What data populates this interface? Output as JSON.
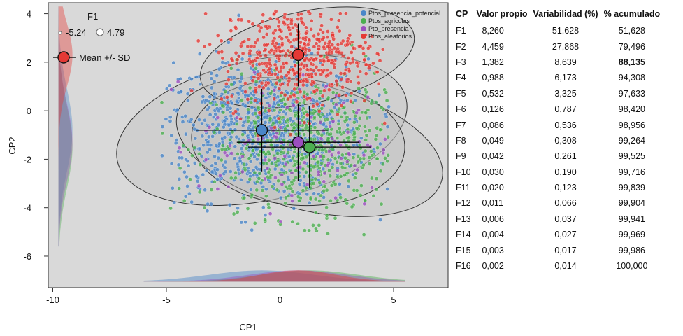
{
  "chart_data": [
    {
      "type": "scatter",
      "xlabel": "CP1",
      "ylabel": "CP2",
      "xlim": [
        -10.2,
        7.4
      ],
      "ylim": [
        -7.3,
        4.45
      ],
      "x_ticks": [
        -10,
        -5,
        0,
        5
      ],
      "y_ticks": [
        4,
        2,
        0,
        -2,
        -4,
        -6
      ],
      "grid": false,
      "legend": {
        "placement": "top-right",
        "entries": [
          {
            "name": "Ptos_presencia_potencial",
            "color": "#4a86c8"
          },
          {
            "name": "Ptos_agricolas",
            "color": "#4caf50"
          },
          {
            "name": "Pto_presencia",
            "color": "#9c4fbf"
          },
          {
            "name": "Ptos_aleatorios",
            "color": "#e53935"
          }
        ]
      },
      "inset": {
        "title": "F1",
        "min_label": "-5.24",
        "max_label": "4.79",
        "mean_label": "Mean +/- SD"
      },
      "series": [
        {
          "name": "Ptos_presencia_potencial",
          "color": "#4a86c8",
          "mean": [
            -0.8,
            -0.8
          ],
          "sd": [
            2.9,
            1.7
          ],
          "ellipse": {
            "center": [
              -0.8,
              -0.8
            ],
            "rx": 6.5,
            "ry": 2.9,
            "angle_deg": 12
          }
        },
        {
          "name": "Ptos_agricolas",
          "color": "#4caf50",
          "mean": [
            1.3,
            -1.5
          ],
          "sd": [
            2.7,
            1.7
          ],
          "ellipse": {
            "center": [
              1.3,
              -1.5
            ],
            "rx": 6.0,
            "ry": 2.6,
            "angle_deg": -14
          }
        },
        {
          "name": "Pto_presencia",
          "color": "#9c4fbf",
          "mean": [
            0.8,
            -1.3
          ],
          "sd": [
            2.7,
            1.6
          ],
          "ellipse": {
            "center": [
              0.8,
              -1.3
            ],
            "rx": 4.7,
            "ry": 2.6,
            "angle_deg": -4
          }
        },
        {
          "name": "Ptos_aleatorios",
          "color": "#e53935",
          "mean": [
            0.8,
            2.3
          ],
          "sd": [
            2.1,
            1.3
          ],
          "ellipse": {
            "center": [
              1.2,
              2.2
            ],
            "rx": 4.8,
            "ry": 1.9,
            "angle_deg": 12
          }
        }
      ]
    },
    {
      "type": "table",
      "columns": [
        "CP",
        "Valor propio",
        "Variabilidad (%)",
        "% acumulado"
      ],
      "rows": [
        [
          "F1",
          "8,260",
          "51,628",
          "51,628"
        ],
        [
          "F2",
          "4,459",
          "27,868",
          "79,496"
        ],
        [
          "F3",
          "1,382",
          "8,639",
          "88,135"
        ],
        [
          "F4",
          "0,988",
          "6,173",
          "94,308"
        ],
        [
          "F5",
          "0,532",
          "3,325",
          "97,633"
        ],
        [
          "F6",
          "0,126",
          "0,787",
          "98,420"
        ],
        [
          "F7",
          "0,086",
          "0,536",
          "98,956"
        ],
        [
          "F8",
          "0,049",
          "0,308",
          "99,264"
        ],
        [
          "F9",
          "0,042",
          "0,261",
          "99,525"
        ],
        [
          "F10",
          "0,030",
          "0,190",
          "99,716"
        ],
        [
          "F11",
          "0,020",
          "0,123",
          "99,839"
        ],
        [
          "F12",
          "0,011",
          "0,066",
          "99,904"
        ],
        [
          "F13",
          "0,006",
          "0,037",
          "99,941"
        ],
        [
          "F14",
          "0,004",
          "0,027",
          "99,969"
        ],
        [
          "F15",
          "0,003",
          "0,017",
          "99,986"
        ],
        [
          "F16",
          "0,002",
          "0,014",
          "100,000"
        ]
      ],
      "bold_cell": {
        "row": 2,
        "col": 3
      }
    }
  ]
}
